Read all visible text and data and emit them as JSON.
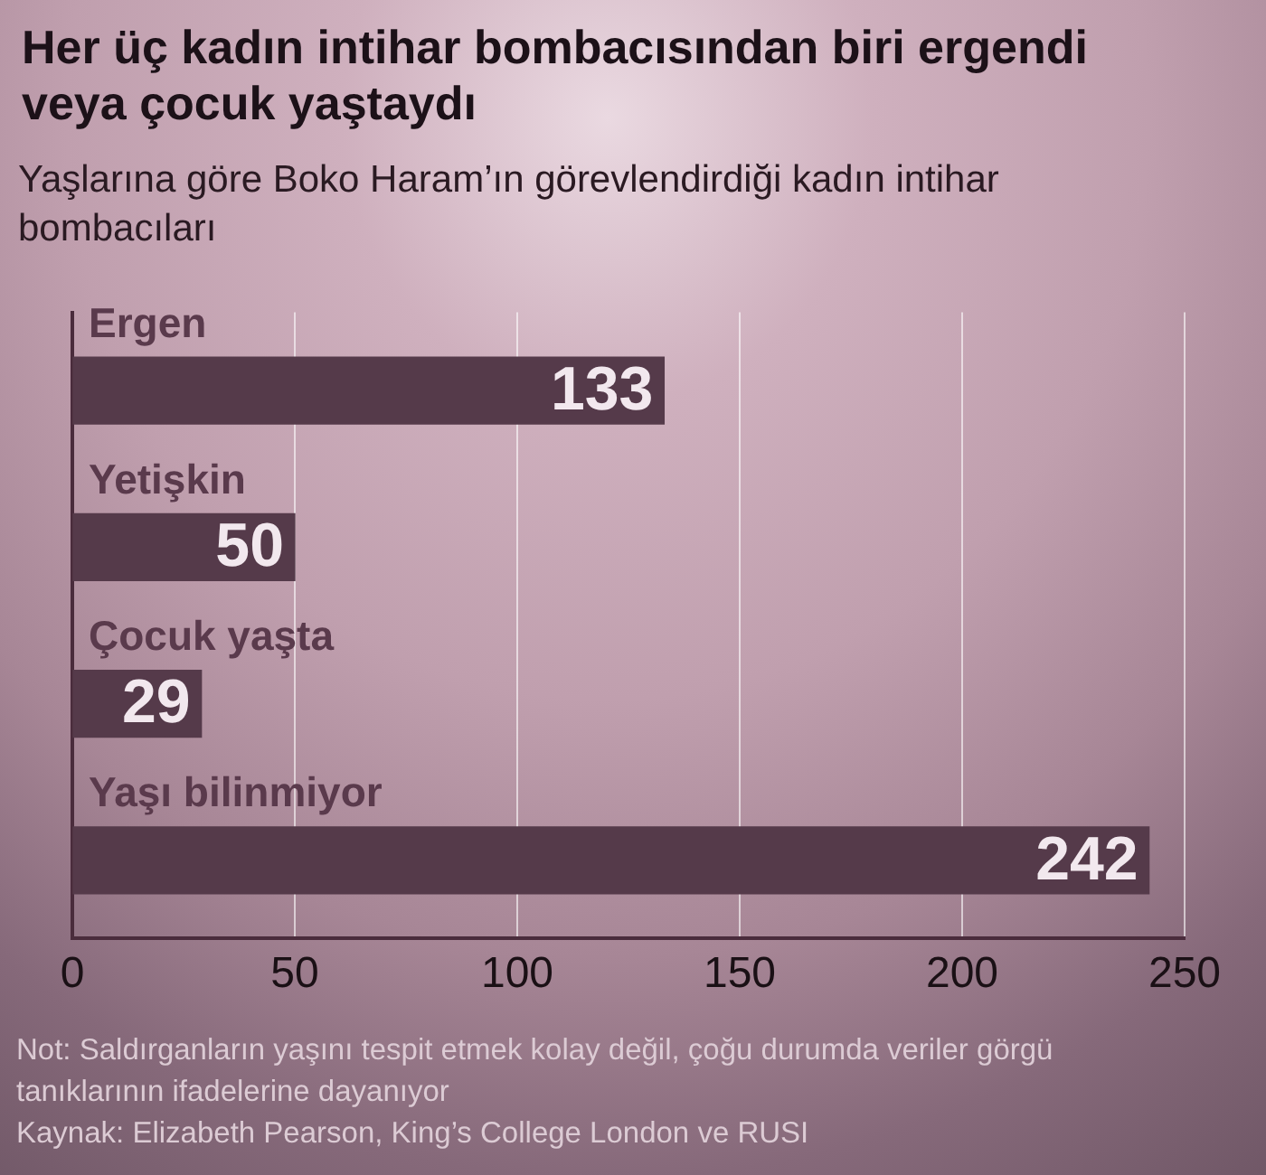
{
  "chart_data": {
    "type": "bar",
    "title": "Her üç kadın intihar bombacısından biri ergendi veya çocuk yaştaydı",
    "subtitle": "Yaşlarına göre Boko Haram’ın görevlendirdiği kadın intihar bombacıları",
    "orientation": "horizontal",
    "categories": [
      "Ergen",
      "Yetişkin",
      "Çocuk yaşta",
      "Yaşı bilinmiyor"
    ],
    "values": [
      133,
      50,
      29,
      242
    ],
    "color": "#553a4a",
    "xlim": [
      0,
      250
    ],
    "xticks": [
      0,
      50,
      100,
      150,
      200,
      250
    ],
    "grid": "x",
    "data_labels": true,
    "annotations": [
      "Not: Saldırganların yaşını tespit etmek kolay değil, çoğu durumda veriler görgü tanıklarının ifadelerine dayanıyor",
      "Kaynak: Elizabeth Pearson, King’s College London ve RUSI"
    ]
  }
}
